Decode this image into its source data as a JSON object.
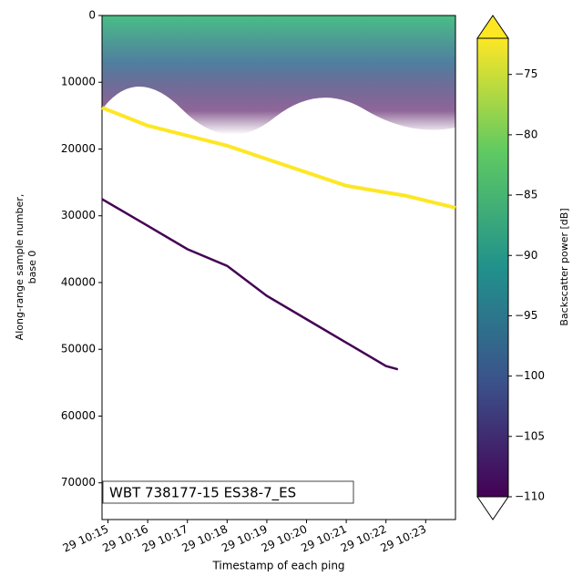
{
  "chart_data": {
    "type": "echogram",
    "xlabel": "Timestamp of each ping",
    "ylabel": [
      "Along-range sample number,",
      "base 0"
    ],
    "annotation": "WBT 738177-15 ES38-7_ES",
    "xlim": [
      14.85,
      23.75
    ],
    "xticks": [
      {
        "value": 15,
        "label": "29 10:15"
      },
      {
        "value": 16,
        "label": "29 10:16"
      },
      {
        "value": 17,
        "label": "29 10:17"
      },
      {
        "value": 18,
        "label": "29 10:18"
      },
      {
        "value": 19,
        "label": "29 10:19"
      },
      {
        "value": 20,
        "label": "29 10:20"
      },
      {
        "value": 21,
        "label": "29 10:21"
      },
      {
        "value": 22,
        "label": "29 10:22"
      },
      {
        "value": 23,
        "label": "29 10:23"
      }
    ],
    "ylim": [
      0,
      75500
    ],
    "invert_y": true,
    "yticks": [
      0,
      10000,
      20000,
      30000,
      40000,
      50000,
      60000,
      70000
    ],
    "colorbar": {
      "label": "Backscatter power [dB]",
      "colormap": "viridis",
      "clim": [
        -110,
        -72
      ],
      "ticks": [
        {
          "value": -75,
          "label": "−75"
        },
        {
          "value": -80,
          "label": "−80"
        },
        {
          "value": -85,
          "label": "−85"
        },
        {
          "value": -90,
          "label": "−90"
        },
        {
          "value": -95,
          "label": "−95"
        },
        {
          "value": -100,
          "label": "−100"
        },
        {
          "value": -105,
          "label": "−105"
        },
        {
          "value": -110,
          "label": "−110"
        }
      ]
    },
    "series": [
      {
        "color": "#fde725",
        "x": [
          14.85,
          16,
          17,
          18,
          19,
          20,
          21,
          22,
          22.5,
          23.75
        ],
        "values": [
          13800,
          16500,
          18000,
          19500,
          21500,
          23500,
          25500,
          26500,
          27000,
          28800
        ]
      },
      {
        "color": "#440154",
        "x": [
          14.85,
          16,
          17,
          18,
          19,
          20,
          21,
          22,
          22.3
        ],
        "values": [
          27500,
          31500,
          35000,
          37500,
          42000,
          45500,
          49000,
          52500,
          53000
        ]
      }
    ]
  }
}
